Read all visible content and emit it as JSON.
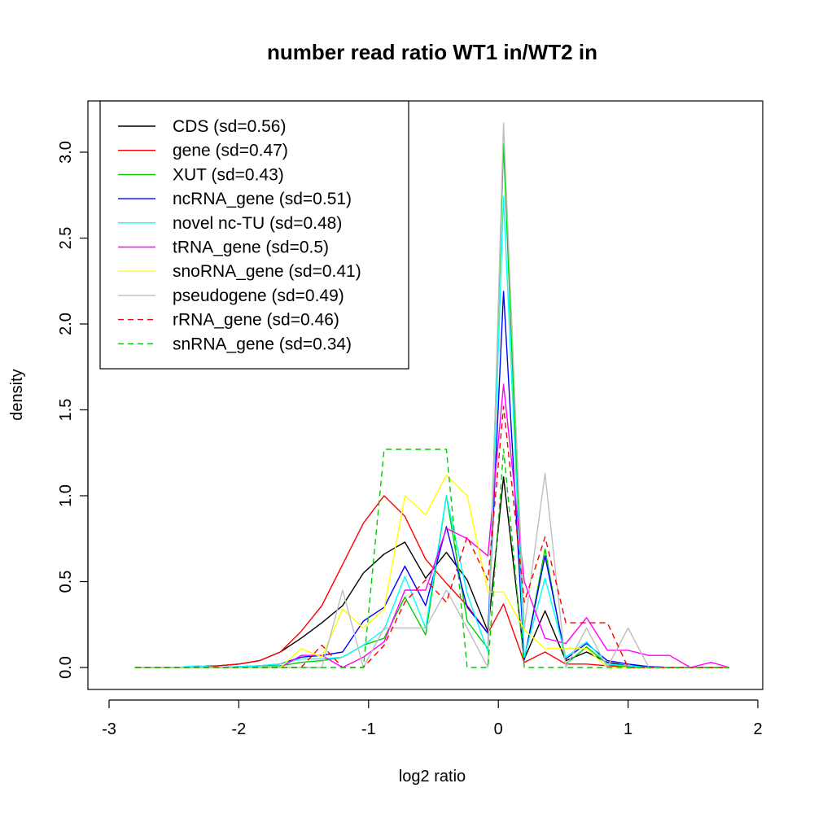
{
  "chart_data": {
    "type": "line",
    "title": "number read ratio WT1 in/WT2 in",
    "xlabel": "log2 ratio",
    "ylabel": "density",
    "xlim": [
      -3,
      2
    ],
    "ylim": [
      0,
      3.2
    ],
    "xticks": [
      -3,
      -2,
      -1,
      0,
      1,
      2
    ],
    "xtick_labels": [
      "-3",
      "-2",
      "-1",
      "0",
      "1",
      "2"
    ],
    "yticks": [
      0,
      0.5,
      1,
      1.5,
      2,
      2.5,
      3
    ],
    "ytick_labels": [
      "0.0",
      "0.5",
      "1.0",
      "1.5",
      "2.0",
      "2.5",
      "3.0"
    ],
    "legend_position": "top-left",
    "x": [
      -2.8,
      -2.64,
      -2.48,
      -2.32,
      -2.16,
      -2.0,
      -1.84,
      -1.68,
      -1.52,
      -1.36,
      -1.2,
      -1.04,
      -0.88,
      -0.72,
      -0.56,
      -0.4,
      -0.24,
      -0.08,
      0.04,
      0.2,
      0.36,
      0.52,
      0.68,
      0.84,
      1.0,
      1.16,
      1.32,
      1.48,
      1.64,
      1.78
    ],
    "series": [
      {
        "name": "CDS (sd=0.56)",
        "color": "#000000",
        "dash": "solid",
        "values": [
          0,
          0,
          0,
          0.005,
          0.01,
          0.02,
          0.04,
          0.09,
          0.17,
          0.26,
          0.36,
          0.55,
          0.66,
          0.73,
          0.52,
          0.67,
          0.51,
          0.21,
          1.11,
          0.05,
          0.33,
          0.04,
          0.09,
          0.03,
          0.01,
          0.005,
          0,
          0,
          0,
          0
        ]
      },
      {
        "name": "gene (sd=0.47)",
        "color": "#ff0000",
        "dash": "solid",
        "values": [
          0,
          0,
          0,
          0.005,
          0.01,
          0.02,
          0.04,
          0.09,
          0.21,
          0.36,
          0.6,
          0.84,
          1.0,
          0.88,
          0.63,
          0.49,
          0.36,
          0.2,
          0.37,
          0.03,
          0.09,
          0.02,
          0.02,
          0.01,
          0.005,
          0,
          0,
          0,
          0,
          0
        ]
      },
      {
        "name": "XUT (sd=0.43)",
        "color": "#00cd00",
        "dash": "solid",
        "values": [
          0,
          0,
          0,
          0,
          0,
          0,
          0.01,
          0.01,
          0.03,
          0.04,
          0.06,
          0.13,
          0.17,
          0.41,
          0.19,
          1.0,
          0.27,
          0.11,
          3.05,
          0.04,
          0.69,
          0.02,
          0.12,
          0.02,
          0,
          0,
          0,
          0,
          0,
          0
        ]
      },
      {
        "name": "ncRNA_gene (sd=0.51)",
        "color": "#0000ff",
        "dash": "solid",
        "values": [
          0,
          0,
          0,
          0,
          0,
          0.005,
          0.01,
          0.02,
          0.06,
          0.07,
          0.09,
          0.27,
          0.35,
          0.59,
          0.36,
          0.82,
          0.35,
          0.2,
          2.19,
          0.05,
          0.65,
          0.05,
          0.14,
          0.04,
          0.02,
          0.005,
          0,
          0,
          0,
          0
        ]
      },
      {
        "name": "novel nc-TU (sd=0.48)",
        "color": "#00ffff",
        "dash": "solid",
        "values": [
          0,
          0,
          0,
          0.01,
          0,
          0.005,
          0.01,
          0.02,
          0.05,
          0.05,
          0.06,
          0.13,
          0.22,
          0.53,
          0.23,
          1.0,
          0.43,
          0.09,
          2.74,
          0.06,
          0.52,
          0.06,
          0.15,
          0.02,
          0.01,
          0,
          0,
          0,
          0,
          0
        ]
      },
      {
        "name": "tRNA_gene (sd=0.5)",
        "color": "#ff00ff",
        "dash": "solid",
        "values": [
          0,
          0,
          0,
          0,
          0,
          0,
          0,
          0,
          0.07,
          0.07,
          0,
          0.06,
          0.15,
          0.45,
          0.45,
          0.81,
          0.75,
          0.65,
          1.65,
          0.5,
          0.17,
          0.14,
          0.29,
          0.1,
          0.1,
          0.07,
          0.07,
          0,
          0.03,
          0
        ]
      },
      {
        "name": "snoRNA_gene (sd=0.41)",
        "color": "#ffff00",
        "dash": "solid",
        "values": [
          0,
          0,
          0,
          0,
          0,
          0,
          0,
          0,
          0.11,
          0.06,
          0.34,
          0.23,
          0.34,
          1.0,
          0.89,
          1.12,
          1.0,
          0.44,
          0.44,
          0.22,
          0.11,
          0.11,
          0.11,
          0,
          0,
          0,
          0,
          0,
          0,
          0
        ]
      },
      {
        "name": "pseudogene (sd=0.49)",
        "color": "#bebebe",
        "dash": "solid",
        "values": [
          0,
          0,
          0,
          0,
          0,
          0,
          0,
          0,
          0,
          0,
          0.45,
          0,
          0.23,
          0.23,
          0.23,
          0.45,
          0.23,
          0,
          3.17,
          0.23,
          1.13,
          0,
          0.23,
          0,
          0.23,
          0,
          0,
          0,
          0,
          0
        ]
      },
      {
        "name": "rRNA_gene (sd=0.46)",
        "color": "#ff0000",
        "dash": "dashed",
        "values": [
          0,
          0,
          0,
          0,
          0,
          0,
          0,
          0,
          0,
          0.13,
          0,
          0,
          0.13,
          0.38,
          0.51,
          0.38,
          0.76,
          0.51,
          1.52,
          0.38,
          0.76,
          0.26,
          0.26,
          0.26,
          0,
          0,
          0,
          0,
          0,
          0
        ]
      },
      {
        "name": "snRNA_gene (sd=0.34)",
        "color": "#00cd00",
        "dash": "dashed",
        "values": [
          0,
          0,
          0,
          0,
          0,
          0,
          0,
          0,
          0,
          0,
          0,
          0,
          1.27,
          1.27,
          1.27,
          1.27,
          0,
          0,
          1.27,
          0,
          0,
          0,
          0,
          0,
          0,
          0,
          0,
          0,
          0,
          0
        ]
      }
    ]
  }
}
